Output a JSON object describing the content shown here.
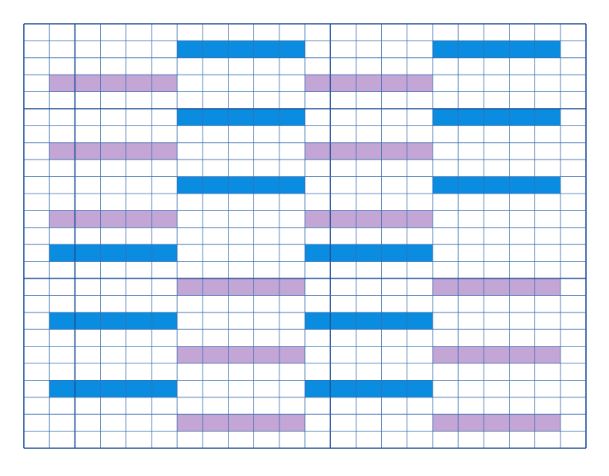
{
  "colors": [
    "#0a8ce0",
    "#c4a6d6"
  ]
}
